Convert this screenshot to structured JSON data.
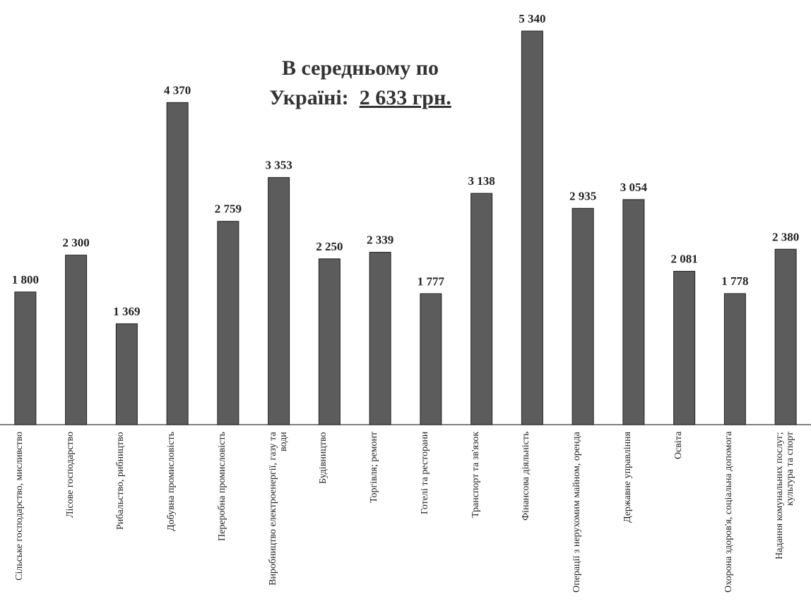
{
  "chart_data": {
    "type": "bar",
    "annotation": {
      "line1": "В середньому по",
      "line2": "Україні:",
      "value": "2 633 грн."
    },
    "categories": [
      "Сільське господарство, мисливство",
      "Лісове господарство",
      "Рибальство, рибництво",
      "Добувна промисловість",
      "Переробна промисловість",
      "Виробництво електроенергії, газу та води",
      "Будівництво",
      "Торгівля; ремонт",
      "Готелі та ресторани",
      "Транспорт та зв'язок",
      "Фінансова діяльність",
      "Операції з нерухомим майном, оренда",
      "Державне управління",
      "Освіта",
      "Охорона здоров'я, соціальна допомога",
      "Надання комунальних послуг; культура та спорт"
    ],
    "values": [
      1800,
      2300,
      1369,
      4370,
      2759,
      3353,
      2250,
      2339,
      1777,
      3138,
      5340,
      2935,
      3054,
      2081,
      1778,
      2380
    ],
    "value_labels": [
      "1 800",
      "2 300",
      "1 369",
      "4 370",
      "2 759",
      "3 353",
      "2 250",
      "2 339",
      "1 777",
      "3 138",
      "5 340",
      "2 935",
      "3 054",
      "2 081",
      "1 778",
      "2 380"
    ],
    "color": "#5c5c5c"
  }
}
